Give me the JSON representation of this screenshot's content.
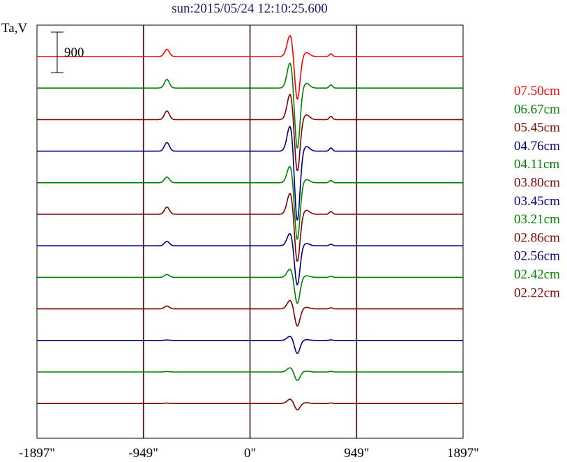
{
  "chart_data": {
    "type": "line",
    "title": "sun:2015/05/24 12:10:25.600",
    "ylabel": "Ta,V",
    "scale_bar_label": "900",
    "xlim": [
      -1897,
      1897
    ],
    "x_ticks": [
      {
        "value": -1897,
        "label": "-1897\""
      },
      {
        "value": -949,
        "label": "-949\""
      },
      {
        "value": 0,
        "label": "0\""
      },
      {
        "value": 949,
        "label": "949\""
      },
      {
        "value": 1897,
        "label": "1897\""
      }
    ],
    "vertical_gridlines_at": [
      -949,
      0,
      949
    ],
    "legend_placement": "right",
    "series": [
      {
        "name": "07.50cm",
        "color": "#ff0000",
        "peak": 500,
        "dip": -1000
      },
      {
        "name": "06.67cm",
        "color": "#008000",
        "peak": 600,
        "dip": -1400
      },
      {
        "name": "05.45cm",
        "color": "#800000",
        "peak": 600,
        "dip": -1200
      },
      {
        "name": "04.76cm",
        "color": "#000080",
        "peak": 600,
        "dip": -1600
      },
      {
        "name": "04.11cm",
        "color": "#008000",
        "peak": 400,
        "dip": -1300
      },
      {
        "name": "03.80cm",
        "color": "#800000",
        "peak": 500,
        "dip": -1100
      },
      {
        "name": "03.45cm",
        "color": "#000080",
        "peak": 300,
        "dip": -900
      },
      {
        "name": "03.21cm",
        "color": "#008000",
        "peak": 200,
        "dip": -600
      },
      {
        "name": "02.86cm",
        "color": "#800000",
        "peak": 200,
        "dip": -400
      },
      {
        "name": "02.56cm",
        "color": "#000080",
        "peak": 100,
        "dip": -300
      },
      {
        "name": "02.42cm",
        "color": "#008000",
        "peak": 100,
        "dip": -200
      },
      {
        "name": "02.22cm",
        "color": "#800000",
        "peak": 100,
        "dip": -150
      }
    ]
  }
}
